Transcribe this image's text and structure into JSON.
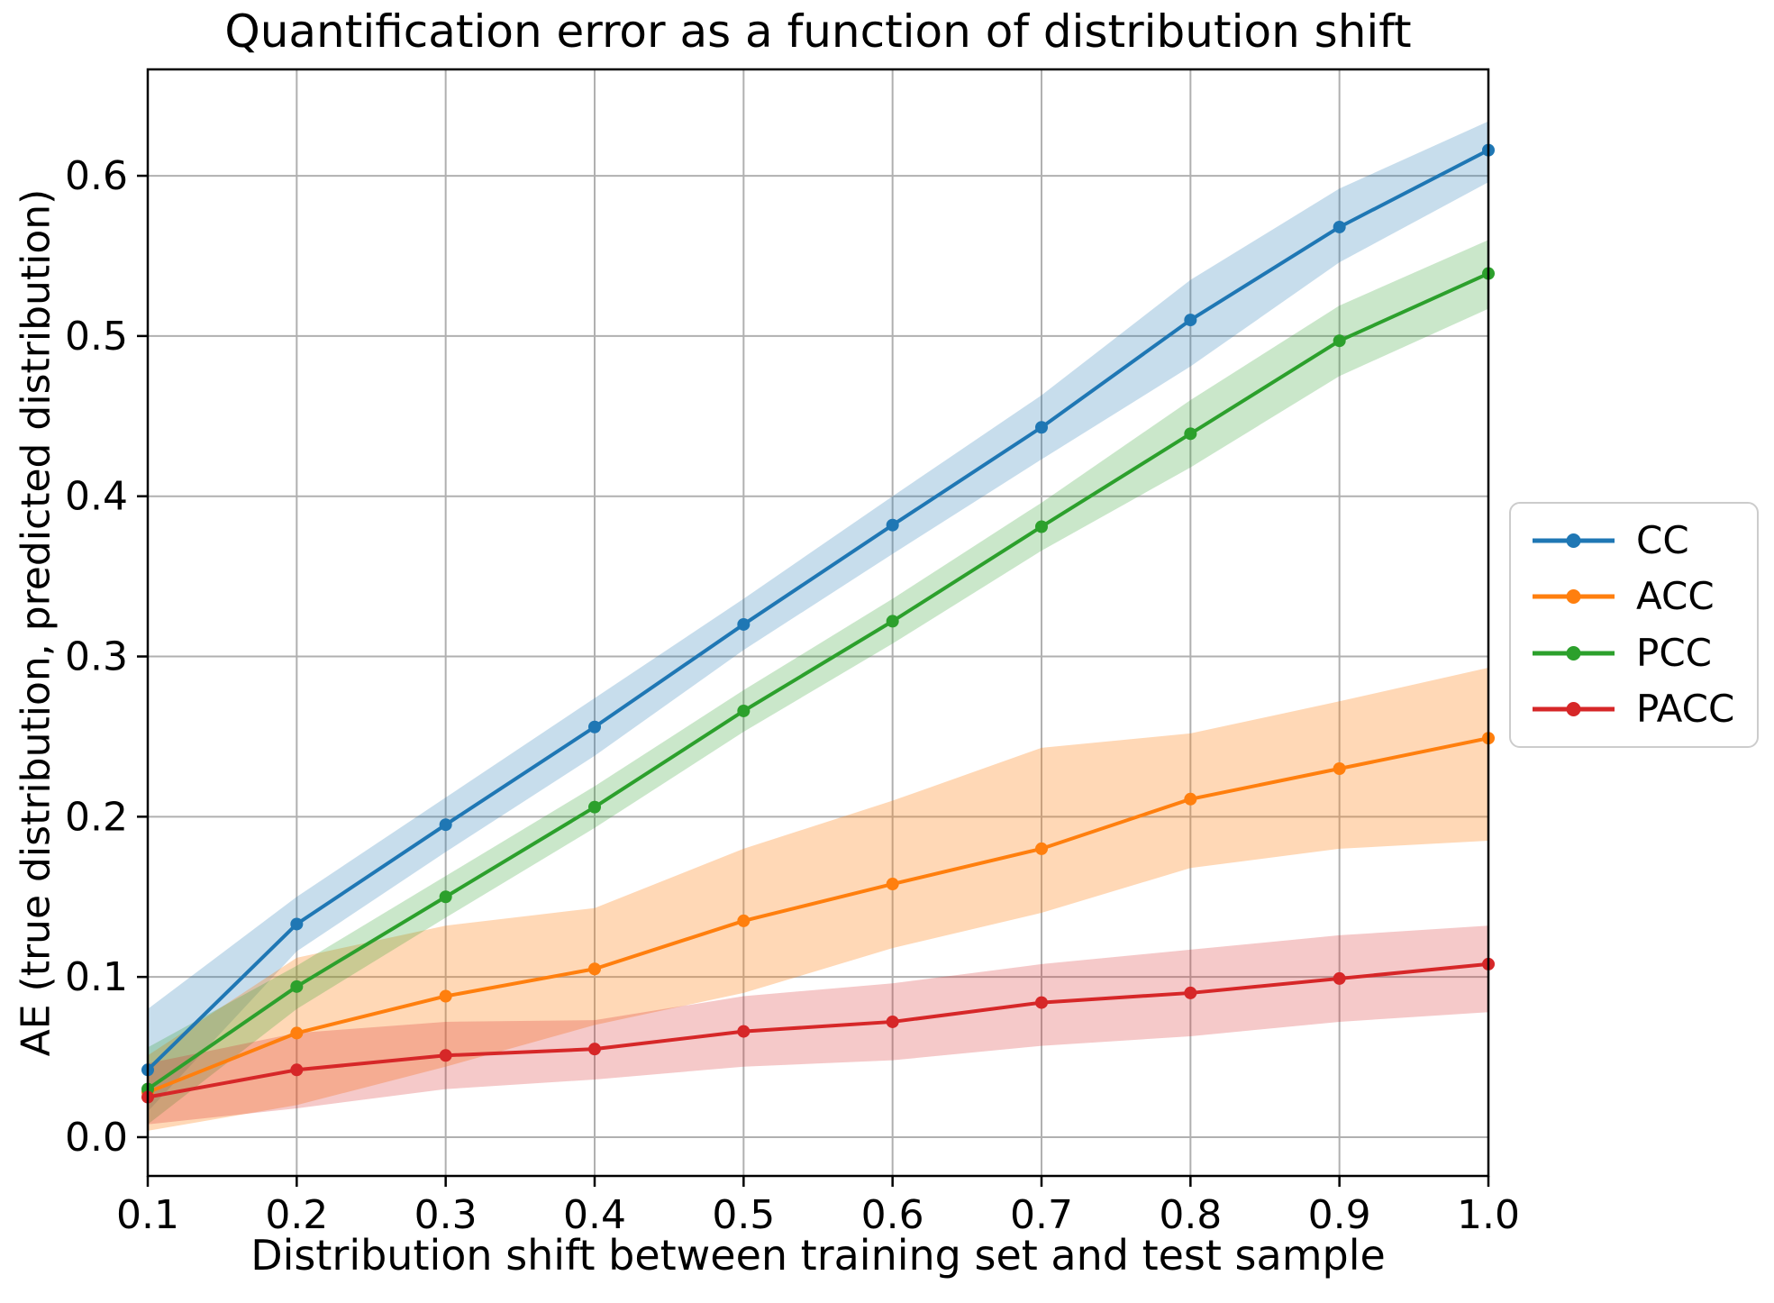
{
  "chart_data": {
    "type": "line",
    "title": "Quantification error as a function of distribution shift",
    "xlabel": "Distribution shift between training set and test sample",
    "ylabel": "AE (true distribution, predicted distribution)",
    "x": [
      0.1,
      0.2,
      0.3,
      0.4,
      0.5,
      0.6,
      0.7,
      0.8,
      0.9,
      1.0
    ],
    "x_tick_labels": [
      "0.1",
      "0.2",
      "0.3",
      "0.4",
      "0.5",
      "0.6",
      "0.7",
      "0.8",
      "0.9",
      "1.0"
    ],
    "y_tick_values": [
      0.0,
      0.1,
      0.2,
      0.3,
      0.4,
      0.5,
      0.6
    ],
    "y_tick_labels": [
      "0.0",
      "0.1",
      "0.2",
      "0.3",
      "0.4",
      "0.5",
      "0.6"
    ],
    "xlim": [
      0.1,
      1.0
    ],
    "ylim": [
      -0.0242,
      0.6664
    ],
    "grid": true,
    "legend_position": "center right outside",
    "grid_color": "#b0b0b0",
    "spine_color": "#000000",
    "background_color": "#ffffff",
    "series": [
      {
        "name": "CC",
        "color": "#1f77b4",
        "band_opacity": 0.25,
        "values": [
          0.042,
          0.133,
          0.195,
          0.256,
          0.32,
          0.382,
          0.443,
          0.51,
          0.568,
          0.616
        ],
        "band_low": [
          0.016,
          0.116,
          0.178,
          0.238,
          0.304,
          0.364,
          0.423,
          0.481,
          0.546,
          0.596
        ],
        "band_high": [
          0.08,
          0.15,
          0.212,
          0.274,
          0.336,
          0.4,
          0.463,
          0.535,
          0.592,
          0.634
        ]
      },
      {
        "name": "ACC",
        "color": "#ff7f0e",
        "band_opacity": 0.3,
        "values": [
          0.028,
          0.065,
          0.088,
          0.105,
          0.135,
          0.158,
          0.18,
          0.211,
          0.23,
          0.249
        ],
        "band_low": [
          0.004,
          0.02,
          0.044,
          0.07,
          0.09,
          0.118,
          0.14,
          0.168,
          0.18,
          0.185
        ],
        "band_high": [
          0.051,
          0.112,
          0.132,
          0.143,
          0.18,
          0.21,
          0.243,
          0.252,
          0.272,
          0.293
        ]
      },
      {
        "name": "PCC",
        "color": "#2ca02c",
        "band_opacity": 0.25,
        "values": [
          0.03,
          0.094,
          0.15,
          0.206,
          0.266,
          0.322,
          0.381,
          0.439,
          0.497,
          0.539
        ],
        "band_low": [
          0.008,
          0.08,
          0.137,
          0.193,
          0.253,
          0.308,
          0.366,
          0.418,
          0.475,
          0.517
        ],
        "band_high": [
          0.056,
          0.107,
          0.163,
          0.219,
          0.279,
          0.336,
          0.396,
          0.46,
          0.519,
          0.56
        ]
      },
      {
        "name": "PACC",
        "color": "#d62728",
        "band_opacity": 0.25,
        "values": [
          0.025,
          0.042,
          0.051,
          0.055,
          0.066,
          0.072,
          0.084,
          0.09,
          0.099,
          0.108
        ],
        "band_low": [
          0.008,
          0.018,
          0.03,
          0.036,
          0.044,
          0.048,
          0.057,
          0.063,
          0.072,
          0.078
        ],
        "band_high": [
          0.046,
          0.065,
          0.072,
          0.073,
          0.088,
          0.096,
          0.108,
          0.117,
          0.126,
          0.132
        ]
      }
    ]
  }
}
